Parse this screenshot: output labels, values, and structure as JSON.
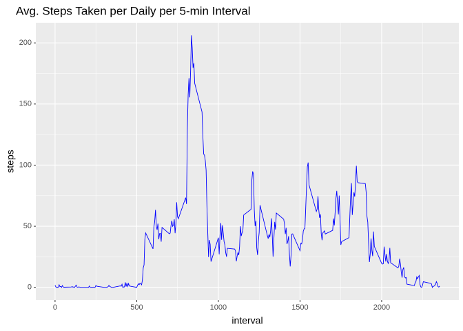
{
  "chart_data": {
    "type": "line",
    "title": "Avg. Steps Taken per Daily per 5-min Interval",
    "x_label": "interval",
    "y_label": "steps",
    "color": "#0000ff",
    "xlim": [
      -117.75,
      2472.75
    ],
    "xticks": [
      0,
      500,
      1000,
      1500,
      2000
    ],
    "xminor": [
      250,
      750,
      1250,
      1750,
      2250
    ],
    "ylim": [
      -10.31,
      216.48
    ],
    "yticks": [
      0,
      50,
      100,
      150,
      200
    ],
    "yminor": [
      25,
      75,
      125,
      175
    ],
    "grid": true,
    "x": [
      0,
      5,
      10,
      15,
      20,
      25,
      30,
      35,
      40,
      45,
      50,
      55,
      100,
      105,
      110,
      115,
      120,
      125,
      130,
      135,
      140,
      145,
      150,
      155,
      200,
      205,
      210,
      215,
      220,
      225,
      230,
      235,
      240,
      245,
      250,
      255,
      300,
      305,
      310,
      315,
      320,
      325,
      330,
      335,
      340,
      345,
      350,
      355,
      400,
      405,
      410,
      415,
      420,
      425,
      430,
      435,
      440,
      445,
      450,
      455,
      500,
      505,
      510,
      515,
      520,
      525,
      530,
      535,
      540,
      545,
      550,
      555,
      600,
      605,
      610,
      615,
      620,
      625,
      630,
      635,
      640,
      645,
      650,
      655,
      700,
      705,
      710,
      715,
      720,
      725,
      730,
      735,
      740,
      745,
      750,
      755,
      800,
      805,
      810,
      815,
      820,
      825,
      830,
      835,
      840,
      845,
      850,
      855,
      900,
      905,
      910,
      915,
      920,
      925,
      930,
      935,
      940,
      945,
      950,
      955,
      1000,
      1005,
      1010,
      1015,
      1020,
      1025,
      1030,
      1035,
      1040,
      1045,
      1050,
      1055,
      1100,
      1105,
      1110,
      1115,
      1120,
      1125,
      1130,
      1135,
      1140,
      1145,
      1150,
      1155,
      1200,
      1205,
      1210,
      1215,
      1220,
      1225,
      1230,
      1235,
      1240,
      1245,
      1250,
      1255,
      1300,
      1305,
      1310,
      1315,
      1320,
      1325,
      1330,
      1335,
      1340,
      1345,
      1350,
      1355,
      1400,
      1405,
      1410,
      1415,
      1420,
      1425,
      1430,
      1435,
      1440,
      1445,
      1450,
      1455,
      1500,
      1505,
      1510,
      1515,
      1520,
      1525,
      1530,
      1535,
      1540,
      1545,
      1550,
      1555,
      1600,
      1605,
      1610,
      1615,
      1620,
      1625,
      1630,
      1635,
      1640,
      1645,
      1650,
      1655,
      1700,
      1705,
      1710,
      1715,
      1720,
      1725,
      1730,
      1735,
      1740,
      1745,
      1750,
      1755,
      1800,
      1805,
      1810,
      1815,
      1820,
      1825,
      1830,
      1835,
      1840,
      1845,
      1850,
      1855,
      1900,
      1905,
      1910,
      1915,
      1920,
      1925,
      1930,
      1935,
      1940,
      1945,
      1950,
      1955,
      2000,
      2005,
      2010,
      2015,
      2020,
      2025,
      2030,
      2035,
      2040,
      2045,
      2050,
      2055,
      2100,
      2105,
      2110,
      2115,
      2120,
      2125,
      2130,
      2135,
      2140,
      2145,
      2150,
      2155,
      2200,
      2205,
      2210,
      2215,
      2220,
      2225,
      2230,
      2235,
      2240,
      2245,
      2250,
      2255,
      2300,
      2305,
      2310,
      2315,
      2320,
      2325,
      2330,
      2335,
      2340,
      2345,
      2350,
      2355
    ],
    "values": [
      1.72,
      0.34,
      0.13,
      0.15,
      0.08,
      2.09,
      0.53,
      0.87,
      0,
      1.47,
      0.3,
      0.13,
      0.32,
      0.68,
      0.15,
      0.34,
      0,
      1.11,
      1.83,
      0.17,
      0.17,
      0.38,
      0.26,
      0,
      0,
      0,
      1.13,
      0,
      0,
      0.13,
      0,
      0.23,
      0,
      0,
      1.55,
      0.94,
      0,
      0,
      0,
      0,
      0.21,
      0.62,
      1.62,
      0.58,
      0.49,
      0.08,
      0,
      0,
      1.19,
      0.94,
      2.57,
      0,
      0.34,
      0.36,
      4.11,
      0.66,
      3.49,
      0.83,
      3.11,
      1.11,
      0,
      1.57,
      3,
      2.25,
      3.32,
      2.96,
      2.09,
      6.06,
      16.02,
      18.34,
      39.45,
      44.49,
      31.49,
      49.26,
      53.77,
      63.45,
      49.96,
      47.08,
      52.15,
      39.34,
      44.02,
      44.17,
      37.36,
      49.04,
      43.81,
      44.38,
      50.51,
      54.51,
      49.92,
      50.98,
      55.68,
      44.32,
      52.26,
      69.55,
      57.85,
      56.15,
      73.38,
      68.21,
      129.43,
      157.53,
      171.15,
      155.4,
      177.3,
      206.17,
      195.92,
      179.57,
      183.4,
      167.02,
      143.45,
      124.04,
      109.11,
      108.11,
      103.72,
      95.96,
      66.21,
      45.23,
      24.79,
      38.75,
      34.98,
      21.06,
      40.57,
      26.98,
      42.42,
      52.66,
      38.92,
      50.79,
      44.28,
      37.42,
      34.7,
      28.34,
      25.09,
      31.94,
      31.36,
      29.68,
      21.32,
      25.55,
      28.38,
      26.47,
      33.43,
      49.98,
      42.04,
      44.6,
      46.04,
      59.19,
      63.87,
      87.7,
      94.85,
      92.77,
      63.4,
      50.17,
      54.47,
      32.42,
      26.53,
      37.74,
      45.06,
      67.28,
      42.34,
      39.89,
      43.26,
      40.98,
      46.25,
      56.43,
      42.75,
      25.13,
      39.96,
      53.55,
      47.32,
      60.81,
      55.75,
      51.96,
      43.58,
      48.7,
      35.47,
      37.55,
      41.85,
      27.51,
      17.11,
      26.08,
      43.62,
      43.77,
      30.02,
      36.08,
      35.49,
      38.85,
      45.96,
      47.75,
      48.13,
      65.32,
      82.91,
      98.66,
      102.11,
      83.96,
      62.13,
      64.13,
      74.55,
      63.17,
      56.91,
      59.77,
      43.87,
      38.57,
      44.66,
      45.45,
      46.21,
      43.68,
      46.62,
      56.3,
      50.72,
      61.23,
      72.72,
      78.94,
      68.94,
      59.66,
      75.09,
      56.51,
      34.77,
      37.45,
      40.68,
      58.02,
      74.7,
      85.32,
      59.26,
      67.77,
      77.7,
      74.25,
      85.34,
      99.45,
      86.58,
      85.6,
      84.87,
      77.83,
      58.04,
      53.36,
      36.33,
      20.72,
      27.4,
      40.02,
      30.21,
      25.55,
      45.66,
      33.53,
      19.62,
      19.02,
      19.34,
      33.34,
      26.81,
      21.17,
      27.3,
      21.34,
      19.55,
      21.32,
      32.3,
      20.15,
      15.94,
      17.23,
      23.45,
      19.25,
      12.45,
      8.02,
      14.66,
      16.3,
      8.68,
      7.79,
      8.13,
      2.62,
      1.45,
      3.68,
      4.81,
      8.51,
      7.08,
      8.7,
      9.75,
      2.21,
      0.32,
      0.11,
      1.6,
      4.6,
      3.3,
      2.85,
      0,
      0.83,
      0.96,
      1.58,
      2.6,
      4.7,
      3.3,
      0.64,
      0.23,
      1.08
    ]
  }
}
